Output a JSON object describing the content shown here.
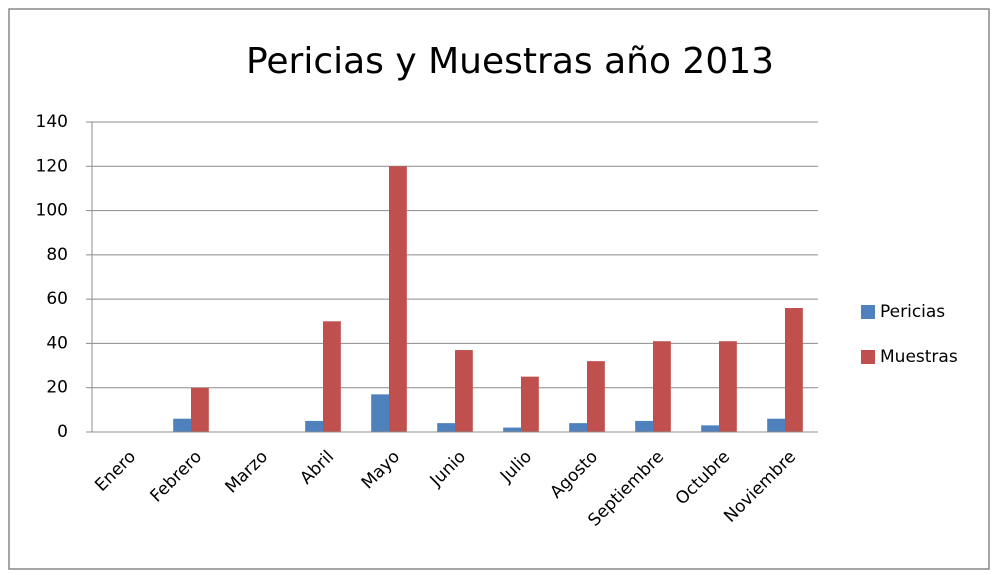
{
  "chart_data": {
    "type": "bar",
    "title": "Pericias y Muestras año 2013",
    "categories": [
      "Enero",
      "Febrero",
      "Marzo",
      "Abril",
      "Mayo",
      "Junio",
      "Julio",
      "Agosto",
      "Septiembre",
      "Octubre",
      "Noviembre"
    ],
    "series": [
      {
        "name": "Pericias",
        "color": "#4f81bd",
        "values": [
          0,
          6,
          0,
          5,
          17,
          4,
          2,
          4,
          5,
          3,
          6
        ]
      },
      {
        "name": "Muestras",
        "color": "#c0504d",
        "values": [
          0,
          20,
          0,
          50,
          120,
          37,
          25,
          32,
          41,
          41,
          56
        ]
      }
    ],
    "ylim": [
      0,
      140
    ],
    "yticks": [
      0,
      20,
      40,
      60,
      80,
      100,
      120,
      140
    ],
    "grid": true,
    "legend": "right"
  }
}
